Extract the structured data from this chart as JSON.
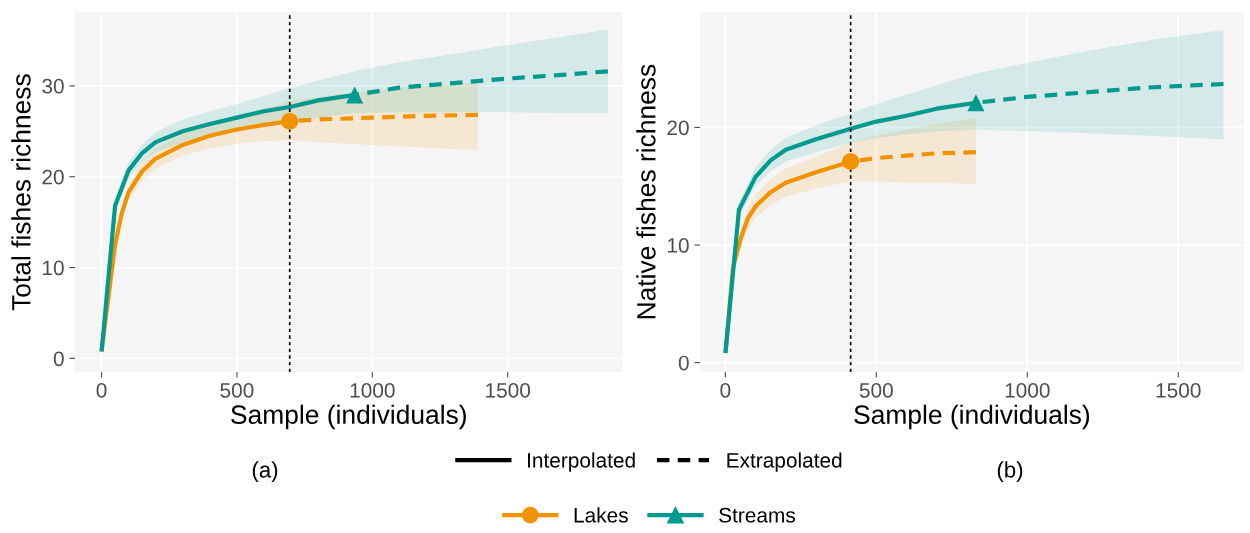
{
  "chart_data": [
    {
      "type": "line",
      "xlabel": "Sample (individuals)",
      "ylabel": "Total fishes richness",
      "xlim": [
        -98,
        1924
      ],
      "ylim": [
        -1.5,
        38.1
      ],
      "xticks": [
        0,
        500,
        1000,
        1500
      ],
      "yticks": [
        0,
        10,
        20,
        30
      ],
      "grid": true,
      "legend": "bottom",
      "annotations": [
        "(a)",
        "Interpolated",
        "Extrapolated"
      ],
      "ref_lines": [
        {
          "axis": "x",
          "value": 695,
          "color": "#000000",
          "line_style": "dotted"
        }
      ],
      "series": [
        {
          "type": "scatter",
          "color": "#f39200",
          "marker": "circle",
          "x": [
            695
          ],
          "values": [
            26.1
          ]
        },
        {
          "type": "scatter",
          "color": "#009a8f",
          "marker": "triangle",
          "x": [
            935
          ],
          "values": [
            29
          ]
        },
        {
          "name": "Lakes",
          "color": "#f39200",
          "line_style": "solid",
          "x": [
            1,
            50,
            75,
            100,
            150,
            200,
            300,
            400,
            500,
            600,
            695
          ],
          "values": [
            1,
            12.5,
            16,
            18.3,
            20.6,
            22,
            23.5,
            24.5,
            25.2,
            25.7,
            26.1
          ],
          "lower": [
            1,
            11.8,
            15.2,
            17.4,
            19.6,
            20.9,
            22.3,
            23.1,
            23.6,
            23.9,
            24
          ],
          "upper": [
            1,
            13.2,
            16.8,
            19.2,
            21.6,
            23.1,
            24.7,
            25.9,
            26.8,
            27.5,
            28.3
          ]
        },
        {
          "color": "#f39200",
          "line_style": "dashed",
          "x": [
            695,
            800,
            1000,
            1200,
            1390
          ],
          "values": [
            26.1,
            26.3,
            26.5,
            26.7,
            26.8
          ],
          "lower": [
            24,
            23.8,
            23.5,
            23.2,
            22.9
          ],
          "upper": [
            28.3,
            28.8,
            29.5,
            30,
            30.3
          ]
        },
        {
          "name": "Streams",
          "color": "#009a8f",
          "line_style": "solid",
          "x": [
            1,
            50,
            100,
            150,
            200,
            300,
            400,
            500,
            600,
            700,
            800,
            935
          ],
          "values": [
            1,
            16.8,
            20.7,
            22.6,
            23.8,
            25,
            25.8,
            26.5,
            27.2,
            27.7,
            28.4,
            29
          ],
          "lower": [
            1,
            16,
            19.8,
            21.6,
            22.7,
            23.7,
            24.4,
            25,
            25.5,
            25.9,
            26.5,
            27
          ],
          "upper": [
            1,
            17.6,
            21.6,
            23.6,
            24.9,
            26.3,
            27.2,
            28,
            28.9,
            29.8,
            30.6,
            31.6
          ]
        },
        {
          "color": "#009a8f",
          "line_style": "dashed",
          "x": [
            935,
            1100,
            1300,
            1500,
            1700,
            1870
          ],
          "values": [
            29,
            29.8,
            30.3,
            30.8,
            31.2,
            31.6
          ],
          "lower": [
            27,
            27.1,
            27.1,
            27.1,
            27,
            27
          ],
          "upper": [
            31.6,
            32.6,
            33.5,
            34.5,
            35.4,
            36.2
          ]
        }
      ]
    },
    {
      "type": "line",
      "xlabel": "Sample (individuals)",
      "ylabel": "Native fishes richness",
      "xlim": [
        -84,
        1717
      ],
      "ylim": [
        -0.8,
        29.8
      ],
      "xticks": [
        0,
        500,
        1000,
        1500
      ],
      "yticks": [
        0,
        10,
        20
      ],
      "grid": true,
      "annotations": [
        "(b)"
      ],
      "ref_lines": [
        {
          "axis": "x",
          "value": 415,
          "color": "#000000",
          "line_style": "dotted"
        }
      ],
      "series": [
        {
          "type": "scatter",
          "color": "#f39200",
          "marker": "circle",
          "x": [
            415
          ],
          "values": [
            17.1
          ]
        },
        {
          "type": "scatter",
          "color": "#009a8f",
          "marker": "triangle",
          "x": [
            830
          ],
          "values": [
            22.1
          ]
        },
        {
          "name": "Lakes",
          "color": "#f39200",
          "line_style": "solid",
          "x": [
            1,
            25,
            50,
            75,
            100,
            150,
            200,
            300,
            415
          ],
          "values": [
            1,
            8,
            10.5,
            12.3,
            13.3,
            14.5,
            15.3,
            16.2,
            17.1
          ],
          "lower": [
            1,
            7.5,
            9.8,
            11.4,
            12.3,
            13.4,
            14.1,
            14.8,
            15.4
          ],
          "upper": [
            1,
            8.5,
            11.2,
            13.2,
            14.3,
            15.6,
            16.5,
            17.5,
            18.7
          ]
        },
        {
          "color": "#f39200",
          "line_style": "dashed",
          "x": [
            415,
            500,
            600,
            700,
            830
          ],
          "values": [
            17.1,
            17.4,
            17.6,
            17.8,
            17.9
          ],
          "lower": [
            15.4,
            15.4,
            15.3,
            15.3,
            15.2
          ],
          "upper": [
            18.7,
            19.3,
            19.8,
            20.3,
            20.8
          ]
        },
        {
          "name": "Streams",
          "color": "#009a8f",
          "line_style": "solid",
          "x": [
            1,
            45,
            100,
            150,
            200,
            300,
            415,
            500,
            600,
            700,
            830
          ],
          "values": [
            1,
            13,
            15.8,
            17.2,
            18.1,
            19,
            19.9,
            20.5,
            21,
            21.6,
            22.1
          ],
          "lower": [
            1,
            12.4,
            15,
            16.3,
            17.1,
            17.9,
            18.7,
            19.1,
            19.4,
            19.7,
            19.8
          ],
          "upper": [
            1,
            13.6,
            16.6,
            18.1,
            19.1,
            20.2,
            21.2,
            22,
            22.8,
            23.6,
            24.6
          ]
        },
        {
          "color": "#009a8f",
          "line_style": "dashed",
          "x": [
            830,
            1000,
            1200,
            1400,
            1650
          ],
          "values": [
            22.1,
            22.6,
            23,
            23.4,
            23.7
          ],
          "lower": [
            19.8,
            19.7,
            19.5,
            19.3,
            19
          ],
          "upper": [
            24.6,
            25.5,
            26.5,
            27.4,
            28.3
          ]
        }
      ]
    }
  ]
}
